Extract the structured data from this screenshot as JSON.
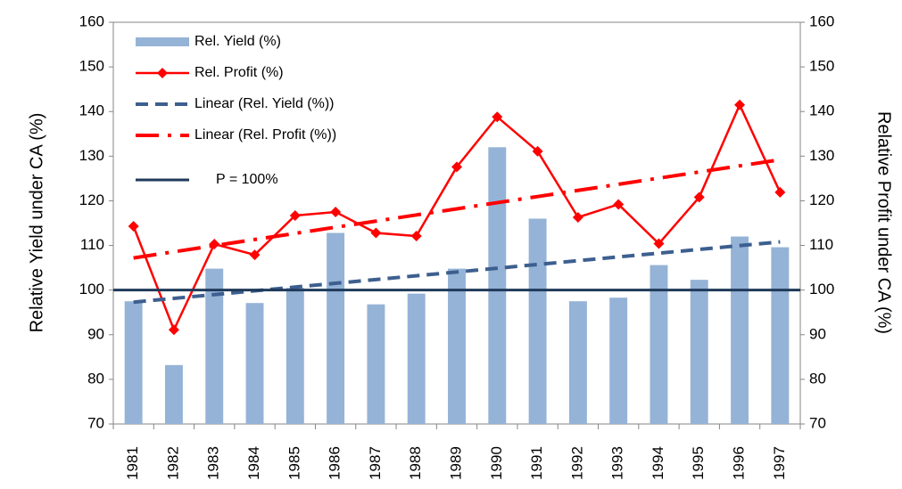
{
  "chart_data": {
    "type": "bar_line",
    "categories": [
      "1981",
      "1982",
      "1983",
      "1984",
      "1985",
      "1986",
      "1987",
      "1988",
      "1989",
      "1990",
      "1991",
      "1992",
      "1993",
      "1994",
      "1995",
      "1996",
      "1997"
    ],
    "series": [
      {
        "name": "Rel. Yield (%)",
        "kind": "bar",
        "color": "#95b3d7",
        "values": [
          97.5,
          83.2,
          104.8,
          97.1,
          100.5,
          112.8,
          96.8,
          99.2,
          104.8,
          132,
          116,
          97.5,
          98.3,
          105.6,
          102.3,
          112,
          109.6
        ]
      },
      {
        "name": "Rel. Profit (%)",
        "kind": "line-marker",
        "axis": "y2",
        "color": "#ff0000",
        "values": [
          114.3,
          91.1,
          110.3,
          107.9,
          116.7,
          117.5,
          112.8,
          112.1,
          127.6,
          138.8,
          131.1,
          116.3,
          119.2,
          110.4,
          120.8,
          141.5,
          121.9
        ]
      },
      {
        "name": "Linear (Rel. Yield (%))",
        "kind": "dashed",
        "color": "#3d5f8f",
        "values": [
          97.3,
          98.14,
          98.99,
          99.83,
          100.68,
          101.52,
          102.36,
          103.21,
          104.05,
          104.89,
          105.74,
          106.58,
          107.43,
          108.27,
          109.11,
          109.96,
          110.8
        ]
      },
      {
        "name": "Linear (Rel. Profit (%))",
        "kind": "dashdot",
        "axis": "y2",
        "color": "#ff0000",
        "values": [
          107.2,
          108.58,
          109.95,
          111.33,
          112.7,
          114.08,
          115.45,
          116.83,
          118.2,
          119.58,
          120.95,
          122.33,
          123.7,
          125.08,
          126.45,
          127.83,
          129.2
        ]
      }
    ],
    "reference_line": {
      "name": "P = 100%",
      "value": 100,
      "color": "#1f3a5a"
    },
    "ylabel": "Relative Yield under CA (%)",
    "y2label": "Relative Profit under CA (%)",
    "ylim": [
      70,
      160
    ],
    "yticks": [
      70,
      80,
      90,
      100,
      110,
      120,
      130,
      140,
      150,
      160
    ],
    "y2lim": [
      70,
      160
    ],
    "y2ticks": [
      70,
      80,
      90,
      100,
      110,
      120,
      130,
      140,
      150,
      160
    ]
  }
}
